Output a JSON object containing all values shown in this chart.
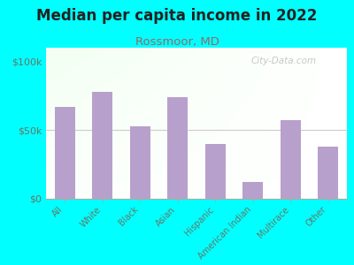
{
  "title": "Median per capita income in 2022",
  "subtitle": "Rossmoor, MD",
  "categories": [
    "All",
    "White",
    "Black",
    "Asian",
    "Hispanic",
    "American Indian",
    "Multirace",
    "Other"
  ],
  "values": [
    67000,
    78000,
    53000,
    74000,
    40000,
    12000,
    57000,
    38000
  ],
  "bar_color": "#b8a0cc",
  "background_outer": "#00FFFF",
  "title_color": "#222222",
  "subtitle_color": "#996666",
  "tick_label_color": "#667766",
  "ytick_labels": [
    "$0",
    "$50k",
    "$100k"
  ],
  "ytick_values": [
    0,
    50000,
    100000
  ],
  "ylim": [
    0,
    110000
  ],
  "watermark": "City-Data.com"
}
